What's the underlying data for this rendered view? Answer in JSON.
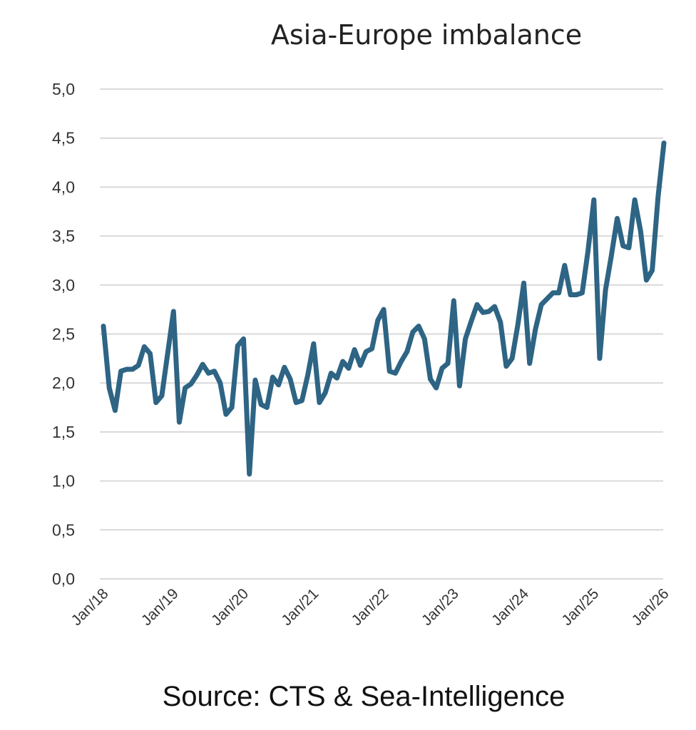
{
  "chart_data": {
    "type": "line",
    "title": "Asia-Europe imbalance",
    "source": "Source: CTS & Sea-Intelligence",
    "xlabel": "",
    "ylabel": "",
    "ylim": [
      0,
      5
    ],
    "yticks": [
      "0,0",
      "0,5",
      "1,0",
      "1,5",
      "2,0",
      "2,5",
      "3,0",
      "3,5",
      "4,0",
      "4,5",
      "5,0"
    ],
    "xticks": [
      "Jan/18",
      "Jan/19",
      "Jan/20",
      "Jan/21",
      "Jan/22",
      "Jan/23",
      "Jan/24",
      "Jan/25",
      "Jan/26"
    ],
    "grid": true,
    "color": "#2e6484",
    "series": [
      {
        "name": "Asia-Europe imbalance",
        "start": "Jan/18",
        "values": [
          2.58,
          1.95,
          1.72,
          2.12,
          2.14,
          2.14,
          2.18,
          2.37,
          2.3,
          1.8,
          1.87,
          2.3,
          2.73,
          1.6,
          1.95,
          1.99,
          2.08,
          2.19,
          2.1,
          2.12,
          2.0,
          1.68,
          1.75,
          2.38,
          2.45,
          1.07,
          2.03,
          1.78,
          1.75,
          2.06,
          1.98,
          2.16,
          2.04,
          1.8,
          1.82,
          2.08,
          2.4,
          1.8,
          1.9,
          2.1,
          2.05,
          2.22,
          2.15,
          2.34,
          2.18,
          2.32,
          2.35,
          2.64,
          2.75,
          2.12,
          2.1,
          2.22,
          2.32,
          2.52,
          2.58,
          2.45,
          2.04,
          1.95,
          2.15,
          2.2,
          2.84,
          1.97,
          2.45,
          2.63,
          2.8,
          2.72,
          2.73,
          2.78,
          2.62,
          2.17,
          2.25,
          2.6,
          3.02,
          2.2,
          2.55,
          2.8,
          2.86,
          2.92,
          2.92,
          3.2,
          2.9,
          2.9,
          2.92,
          3.35,
          3.87,
          2.25,
          2.95,
          3.3,
          3.68,
          3.4,
          3.38,
          3.87,
          3.55,
          3.05,
          3.15,
          3.9,
          4.45
        ]
      }
    ]
  }
}
